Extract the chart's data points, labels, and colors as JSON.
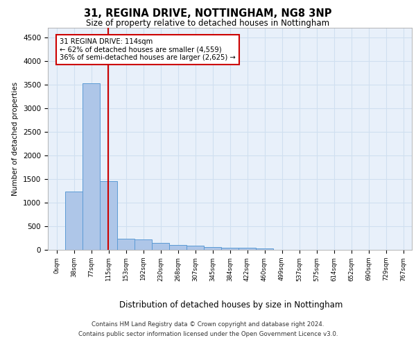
{
  "title": "31, REGINA DRIVE, NOTTINGHAM, NG8 3NP",
  "subtitle": "Size of property relative to detached houses in Nottingham",
  "xlabel": "Distribution of detached houses by size in Nottingham",
  "ylabel": "Number of detached properties",
  "bar_labels": [
    "0sqm",
    "38sqm",
    "77sqm",
    "115sqm",
    "153sqm",
    "192sqm",
    "230sqm",
    "268sqm",
    "307sqm",
    "345sqm",
    "384sqm",
    "422sqm",
    "460sqm",
    "499sqm",
    "537sqm",
    "575sqm",
    "614sqm",
    "652sqm",
    "690sqm",
    "729sqm",
    "767sqm"
  ],
  "bar_values": [
    5,
    1230,
    3520,
    1460,
    230,
    225,
    140,
    110,
    95,
    60,
    50,
    40,
    30,
    5,
    0,
    0,
    0,
    0,
    0,
    0,
    0
  ],
  "bar_color": "#aec6e8",
  "bar_edge_color": "#5b9bd5",
  "grid_color": "#d0dff0",
  "background_color": "#e8f0fa",
  "property_line_color": "#cc0000",
  "annotation_text": "31 REGINA DRIVE: 114sqm\n← 62% of detached houses are smaller (4,559)\n36% of semi-detached houses are larger (2,625) →",
  "annotation_box_color": "#cc0000",
  "ylim": [
    0,
    4700
  ],
  "yticks": [
    0,
    500,
    1000,
    1500,
    2000,
    2500,
    3000,
    3500,
    4000,
    4500
  ],
  "footer_line1": "Contains HM Land Registry data © Crown copyright and database right 2024.",
  "footer_line2": "Contains public sector information licensed under the Open Government Licence v3.0."
}
